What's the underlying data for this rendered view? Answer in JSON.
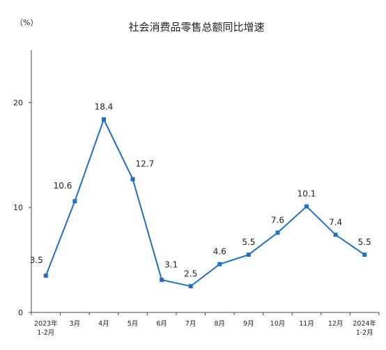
{
  "chart_data": {
    "type": "line",
    "title": "社会消费品零售总额同比增速",
    "unit_label": "（%）",
    "categories": [
      [
        "2023年",
        "1-2月"
      ],
      [
        "3月"
      ],
      [
        "4月"
      ],
      [
        "5月"
      ],
      [
        "6月"
      ],
      [
        "7月"
      ],
      [
        "8月"
      ],
      [
        "9月"
      ],
      [
        "10月"
      ],
      [
        "11月"
      ],
      [
        "12月"
      ],
      [
        "2024年",
        "1-2月"
      ]
    ],
    "series": [
      {
        "values": [
          3.5,
          10.6,
          18.4,
          12.7,
          3.1,
          2.5,
          4.6,
          5.5,
          7.6,
          10.1,
          7.4,
          5.5
        ]
      }
    ],
    "data_labels": [
      "3.5",
      "10.6",
      "18.4",
      "12.7",
      "3.1",
      "2.5",
      "4.6",
      "5.5",
      "7.6",
      "10.1",
      "7.4",
      "5.5"
    ],
    "ylim": [
      0,
      25
    ],
    "yticks": [
      0,
      10,
      20
    ],
    "line_color": "#1f6fc8",
    "grid": false,
    "legend": "none"
  }
}
